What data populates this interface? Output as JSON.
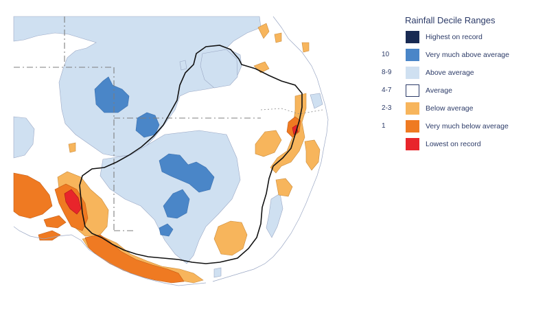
{
  "legend": {
    "title": "Rainfall Decile Ranges",
    "items": [
      {
        "decile": "",
        "label": "Highest on record",
        "color": "#182a52"
      },
      {
        "decile": "10",
        "label": "Very much above average",
        "color": "#4a86c8"
      },
      {
        "decile": "8-9",
        "label": "Above average",
        "color": "#cfe0f1"
      },
      {
        "decile": "4-7",
        "label": "Average",
        "color": "#ffffff"
      },
      {
        "decile": "2-3",
        "label": "Below average",
        "color": "#f7b55c"
      },
      {
        "decile": "1",
        "label": "Very much below average",
        "color": "#ef7a22"
      },
      {
        "decile": "",
        "label": "Lowest on record",
        "color": "#e8252b"
      }
    ]
  },
  "map": {
    "region": "south-eastern Australia",
    "colors": {
      "highest": "#182a52",
      "very_much_above": "#4a86c8",
      "above": "#cfe0f1",
      "average": "#ffffff",
      "below": "#f7b55c",
      "very_much_below": "#ef7a22",
      "lowest": "#e8252b",
      "border": "#111111",
      "coast": "#9aa7c4",
      "state_line": "#7d7d7d"
    }
  }
}
